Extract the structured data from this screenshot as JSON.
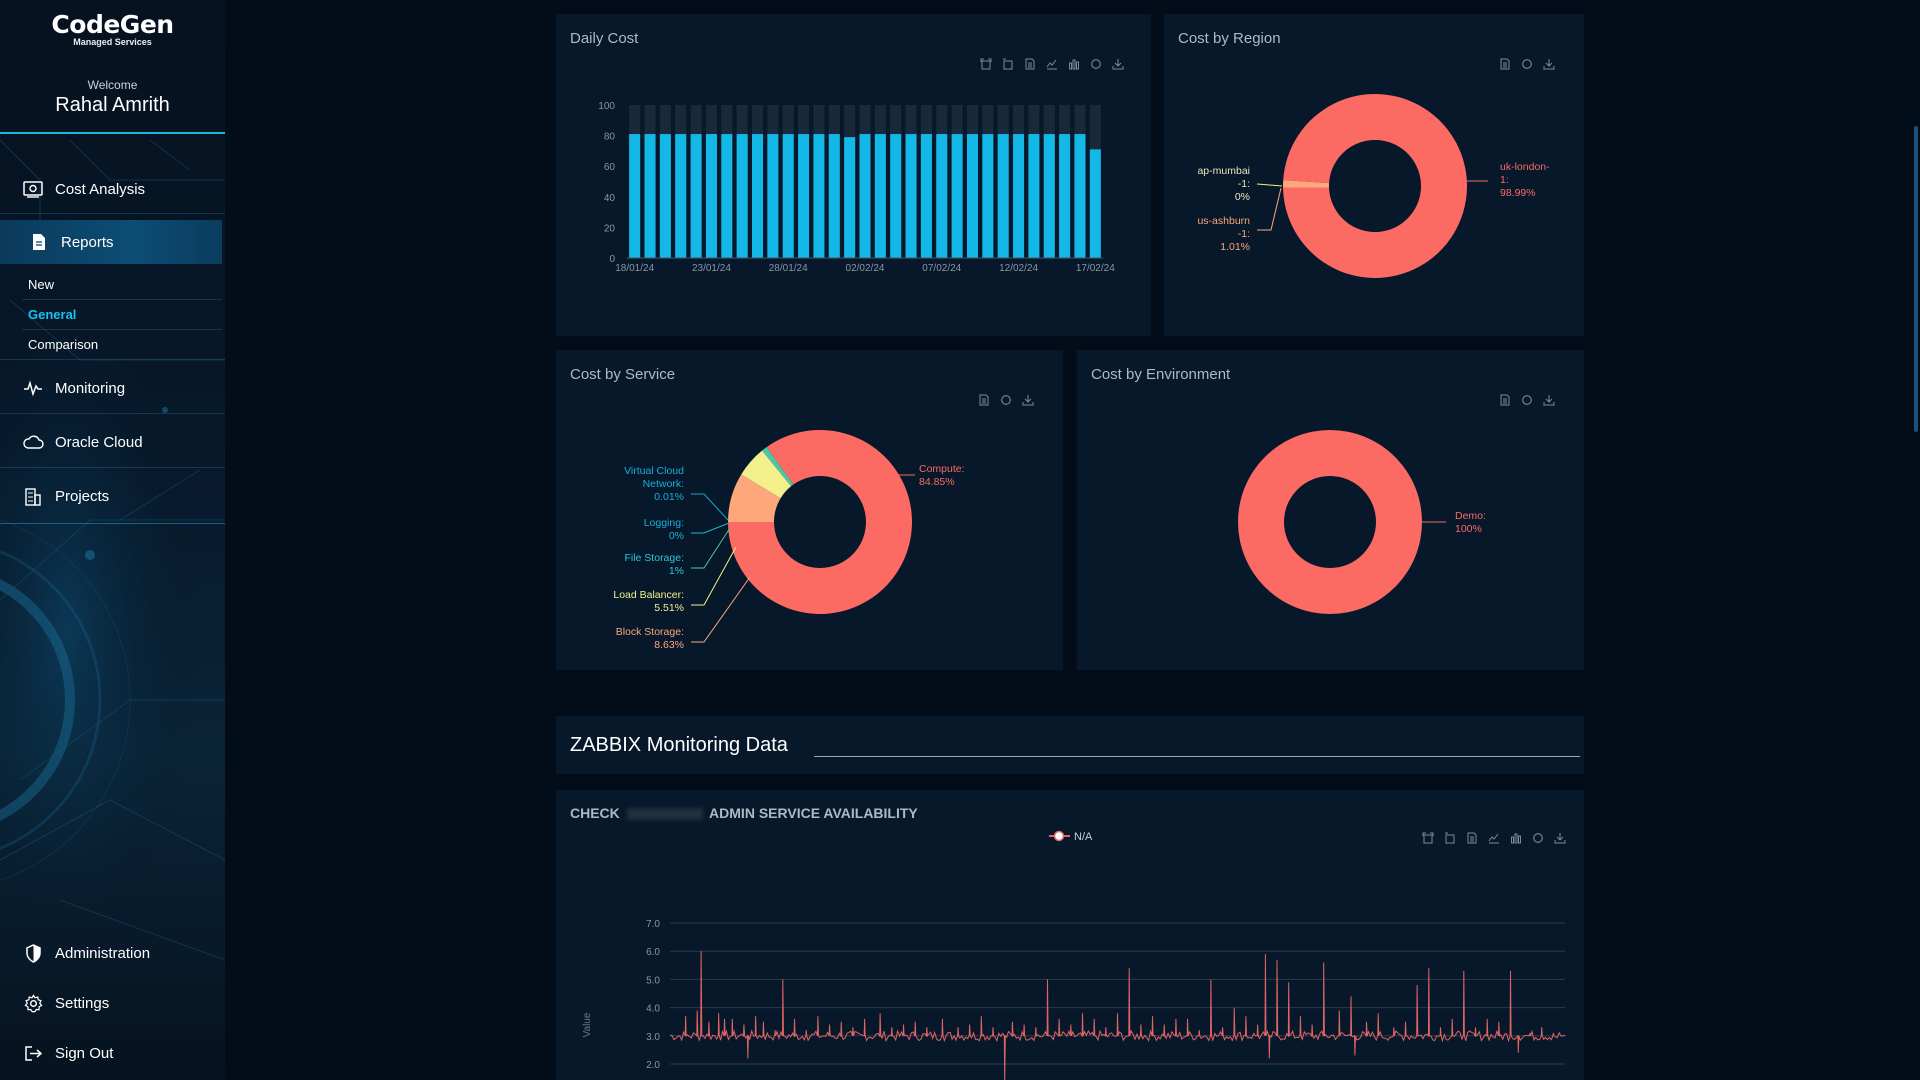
{
  "brand": {
    "name": "CodeGen",
    "subtitle": "Managed Services"
  },
  "user": {
    "welcome": "Welcome",
    "name": "Rahal Amrith"
  },
  "nav": {
    "cost_analysis": "Cost Analysis",
    "reports": "Reports",
    "reports_sub": [
      "New",
      "General",
      "Comparison"
    ],
    "monitoring": "Monitoring",
    "oracle_cloud": "Oracle Cloud",
    "projects": "Projects",
    "administration": "Administration",
    "settings": "Settings",
    "sign_out": "Sign Out"
  },
  "icons": [
    "cost-analysis-icon",
    "reports-icon",
    "monitoring-icon",
    "cloud-icon",
    "projects-icon",
    "shield-icon",
    "gear-icon",
    "sign-out-icon",
    "zoom-icon",
    "zoom-reset-icon",
    "data-view-icon",
    "line-chart-icon",
    "bar-chart-icon",
    "restore-icon",
    "download-icon"
  ],
  "colors": {
    "accent": "#19c2ef",
    "bar": "#14b8e6",
    "pie_main": "#fb6a63",
    "line": "#e06464"
  },
  "panels": {
    "daily_cost": "Daily Cost",
    "cost_by_region": "Cost by Region",
    "cost_by_service": "Cost by Service",
    "cost_by_environment": "Cost by Environment",
    "zabbix_title": "ZABBIX Monitoring Data",
    "check_prefix": "CHECK",
    "check_suffix": "ADMIN SERVICE AVAILABILITY",
    "legend_na": "N/A"
  },
  "chart_data": [
    {
      "type": "bar",
      "title": "Daily Cost",
      "x_ticks": [
        "18/01/24",
        "23/01/24",
        "28/01/24",
        "02/02/24",
        "07/02/24",
        "12/02/24",
        "17/02/24"
      ],
      "y_ticks": [
        "0",
        "20",
        "40",
        "60",
        "80",
        "100"
      ],
      "ylim": [
        0,
        100
      ],
      "values": [
        81,
        81,
        81,
        81,
        81,
        81,
        81,
        81,
        81,
        81,
        81,
        81,
        81,
        81,
        79,
        81,
        81,
        81,
        81,
        81,
        81,
        81,
        81,
        81,
        81,
        81,
        81,
        81,
        81,
        81,
        71
      ],
      "background_values": [
        100,
        100,
        100,
        100,
        100,
        100,
        100,
        100,
        100,
        100,
        100,
        100,
        100,
        100,
        100,
        100,
        100,
        100,
        100,
        100,
        100,
        100,
        100,
        100,
        100,
        100,
        100,
        100,
        100,
        100,
        100
      ]
    },
    {
      "type": "pie",
      "title": "Cost by Region",
      "slices": [
        {
          "label": "uk-london-1",
          "value": 98.99,
          "text": [
            "uk-london-",
            "1:",
            "98.99%"
          ],
          "color": "#fb6a63"
        },
        {
          "label": "ap-mumbai-1",
          "value": 0,
          "text": [
            "ap-mumbai",
            "-1:",
            "0%"
          ],
          "color": "#f3f08c"
        },
        {
          "label": "us-ashburn-1",
          "value": 1.01,
          "text": [
            "us-ashburn",
            "-1:",
            "1.01%"
          ],
          "color": "#fda77a"
        }
      ]
    },
    {
      "type": "pie",
      "title": "Cost by Service",
      "slices": [
        {
          "label": "Compute",
          "value": 84.85,
          "text": [
            "Compute:",
            "84.85%"
          ],
          "color": "#fb6a63"
        },
        {
          "label": "Virtual Cloud Network",
          "value": 0.01,
          "text": [
            "Virtual Cloud",
            "Network:",
            "0.01%"
          ],
          "color": "#17a9c9"
        },
        {
          "label": "Logging",
          "value": 0,
          "text": [
            "Logging:",
            "0%"
          ],
          "color": "#15b8d6"
        },
        {
          "label": "File Storage",
          "value": 1,
          "text": [
            "File Storage:",
            "1%"
          ],
          "color": "#4cc7a5"
        },
        {
          "label": "Load Balancer",
          "value": 5.51,
          "text": [
            "Load Balancer:",
            "5.51%"
          ],
          "color": "#f3f08c"
        },
        {
          "label": "Block Storage",
          "value": 8.63,
          "text": [
            "Block Storage:",
            "8.63%"
          ],
          "color": "#fda77a"
        }
      ]
    },
    {
      "type": "pie",
      "title": "Cost by Environment",
      "slices": [
        {
          "label": "Demo",
          "value": 100,
          "text": [
            "Demo:",
            "100%"
          ],
          "color": "#fb6a63"
        }
      ]
    },
    {
      "type": "line",
      "title": "ADMIN SERVICE AVAILABILITY",
      "legend": [
        "N/A"
      ],
      "ylabel": "Value",
      "y_ticks": [
        "2.0",
        "3.0",
        "4.0",
        "5.0",
        "6.0",
        "7.0"
      ],
      "ylim": [
        2,
        7
      ],
      "baseline": 3.0,
      "spikes": [
        [
          2,
          3.7
        ],
        [
          3.5,
          3.9
        ],
        [
          4,
          6.0
        ],
        [
          5,
          3.5
        ],
        [
          6.2,
          3.8
        ],
        [
          7,
          3.6
        ],
        [
          8,
          3.6
        ],
        [
          9.5,
          3.4
        ],
        [
          10,
          2.2
        ],
        [
          11,
          3.7
        ],
        [
          12,
          3.5
        ],
        [
          13.5,
          3.2
        ],
        [
          14.5,
          5.0
        ],
        [
          16,
          3.6
        ],
        [
          17.5,
          3.2
        ],
        [
          19,
          3.7
        ],
        [
          20.5,
          3.4
        ],
        [
          22,
          3.5
        ],
        [
          23.5,
          3.3
        ],
        [
          25,
          3.6
        ],
        [
          27,
          3.8
        ],
        [
          28.5,
          3.3
        ],
        [
          30,
          3.4
        ],
        [
          31.5,
          3.5
        ],
        [
          33,
          3.3
        ],
        [
          35,
          3.6
        ],
        [
          37,
          3.3
        ],
        [
          38.5,
          3.4
        ],
        [
          40,
          3.7
        ],
        [
          41.5,
          3.3
        ],
        [
          43,
          1.3
        ],
        [
          44,
          3.5
        ],
        [
          45.5,
          3.4
        ],
        [
          47,
          3.3
        ],
        [
          48.5,
          5.0
        ],
        [
          50,
          3.6
        ],
        [
          51.5,
          3.4
        ],
        [
          53,
          3.8
        ],
        [
          54.5,
          3.6
        ],
        [
          56,
          3.3
        ],
        [
          57.5,
          3.8
        ],
        [
          59,
          5.4
        ],
        [
          60.5,
          3.4
        ],
        [
          62,
          3.7
        ],
        [
          63.5,
          3.4
        ],
        [
          65,
          3.6
        ],
        [
          66.5,
          3.6
        ],
        [
          68,
          3.2
        ],
        [
          69.5,
          5.0
        ],
        [
          71,
          3.3
        ],
        [
          72.5,
          4.0
        ],
        [
          74,
          3.7
        ],
        [
          75.5,
          3.4
        ],
        [
          76.5,
          5.9
        ],
        [
          77,
          2.2
        ],
        [
          78,
          5.7
        ],
        [
          79.5,
          4.9
        ],
        [
          81,
          3.7
        ],
        [
          82.5,
          3.4
        ],
        [
          84,
          5.6
        ],
        [
          86,
          3.9
        ],
        [
          87.5,
          4.4
        ],
        [
          88,
          2.3
        ],
        [
          89.5,
          3.5
        ],
        [
          91,
          3.8
        ],
        [
          93,
          3.3
        ],
        [
          94.5,
          3.5
        ],
        [
          96,
          4.8
        ],
        [
          97.5,
          5.4
        ],
        [
          99,
          3.3
        ],
        [
          100.5,
          3.6
        ],
        [
          102,
          5.3
        ],
        [
          103.5,
          3.3
        ],
        [
          105,
          3.6
        ],
        [
          106.5,
          3.5
        ],
        [
          108,
          5.3
        ],
        [
          109,
          2.4
        ],
        [
          110.5,
          3.1
        ],
        [
          112,
          3.3
        ],
        [
          113.5,
          3.1
        ],
        [
          115,
          3.0
        ]
      ]
    }
  ]
}
